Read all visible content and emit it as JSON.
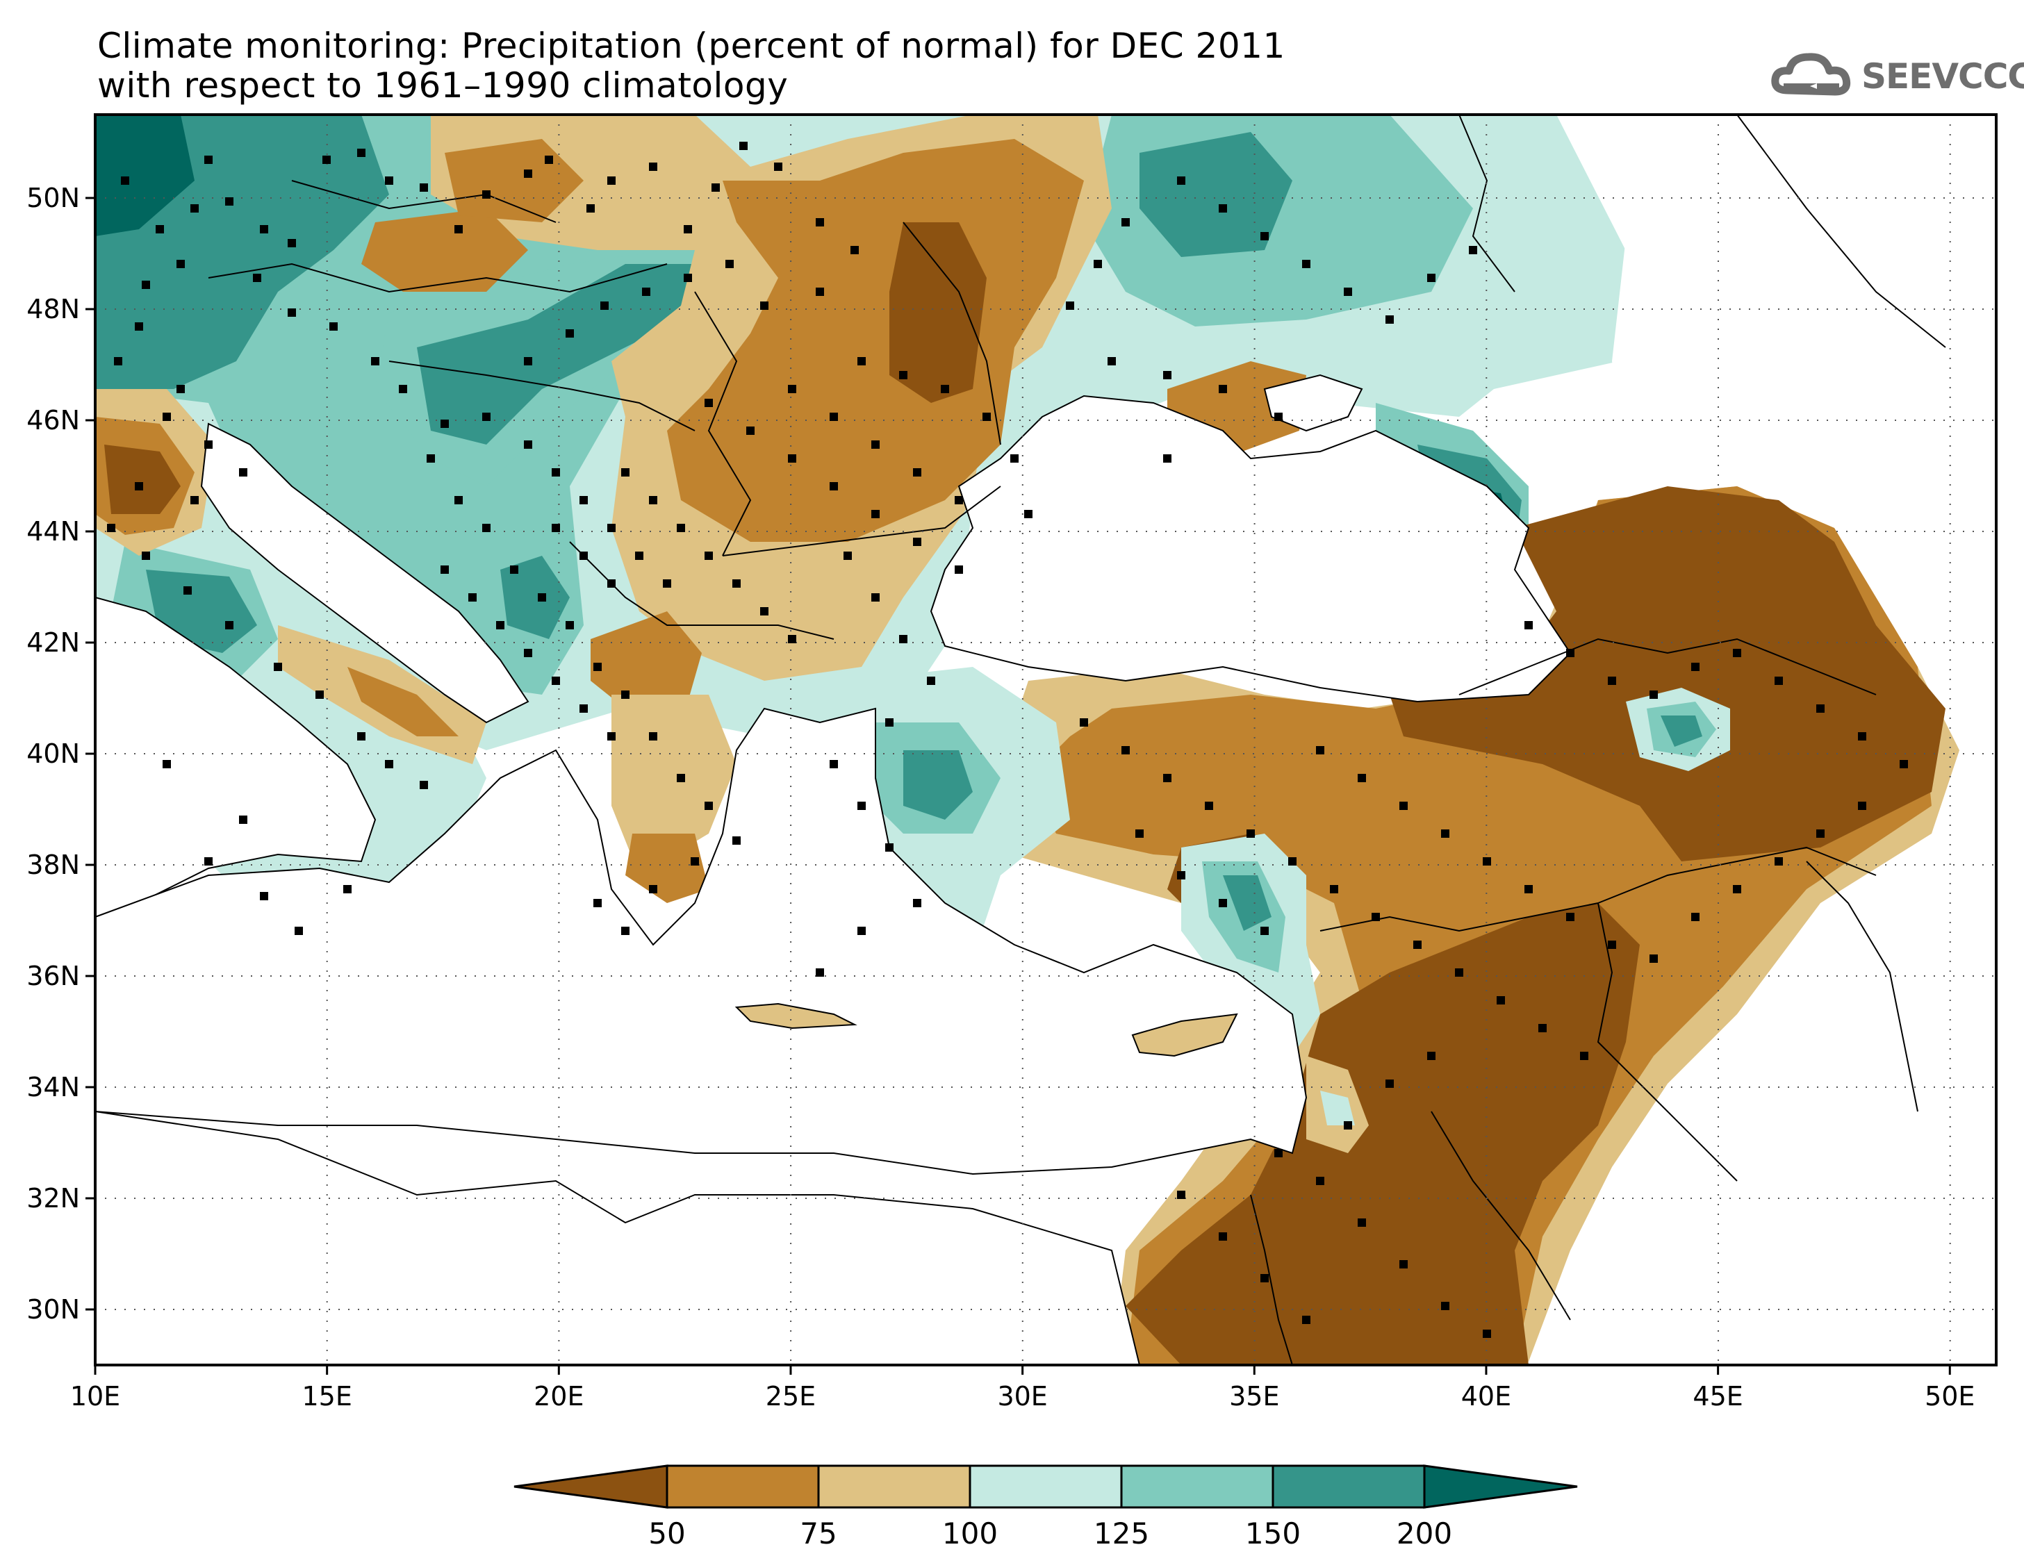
{
  "title": {
    "line1": "Climate monitoring: Precipitation (percent of normal) for DEC 2011",
    "line2": "with respect to 1961–1990 climatology"
  },
  "logo": {
    "text": "SEEVCCC",
    "icon": "cloud-icon",
    "color": "#6e6e6e"
  },
  "map": {
    "lon_range": [
      10,
      51
    ],
    "lat_range": [
      29,
      51.5
    ],
    "lon_ticks": [
      "10E",
      "15E",
      "20E",
      "25E",
      "30E",
      "35E",
      "40E",
      "45E",
      "50E"
    ],
    "lat_ticks": [
      "30N",
      "32N",
      "34N",
      "36N",
      "38N",
      "40N",
      "42N",
      "44N",
      "46N",
      "48N",
      "50N"
    ],
    "grid": "dotted",
    "station_marker": "black-square"
  },
  "legend": {
    "levels": [
      "50",
      "75",
      "100",
      "125",
      "150",
      "200"
    ],
    "colors": [
      "#8c5211",
      "#c0832f",
      "#dfc283",
      "#c5eae2",
      "#7fcbbd",
      "#35958a",
      "#01665e"
    ],
    "units": "percent of normal"
  }
}
